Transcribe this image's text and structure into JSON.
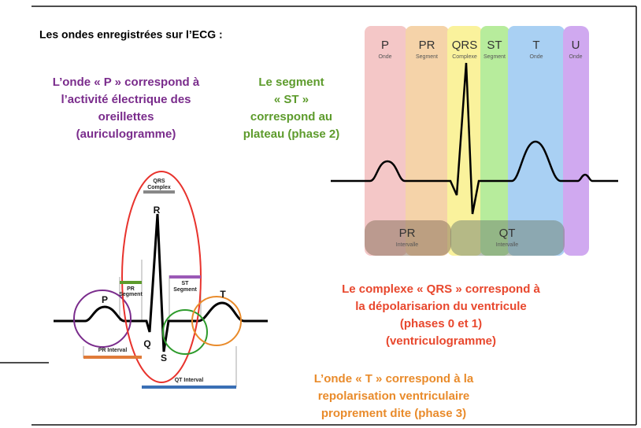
{
  "title": "Les ondes enregistrées sur l’ECG :",
  "notes": {
    "p": [
      "L’onde « P » correspond à",
      "l’activité électrique des",
      "oreillettes",
      "(auriculogramme)"
    ],
    "st": [
      "Le segment",
      "« ST »",
      "correspond au",
      "plateau (phase 2)"
    ],
    "qrs": [
      "Le complexe « QRS » correspond à",
      "la dépolarisarion du ventricule",
      "(phases 0 et 1)",
      "(ventriculogramme)"
    ],
    "t": [
      "L’onde « T » correspond à la",
      "repolarisation ventriculaire",
      "proprement dite (phase 3)"
    ]
  },
  "ecg_phases": [
    {
      "label": "P",
      "sub": "Onde"
    },
    {
      "label": "PR",
      "sub": "Segment"
    },
    {
      "label": "QRS",
      "sub": "Complexe"
    },
    {
      "label": "ST",
      "sub": "Segment"
    },
    {
      "label": "T",
      "sub": "Onde"
    },
    {
      "label": "U",
      "sub": "Onde"
    }
  ],
  "intervals": [
    {
      "label": "PR",
      "sub": "Intervalle"
    },
    {
      "label": "QT",
      "sub": "Intervalle"
    }
  ],
  "trace_labels": {
    "qrs_complex": [
      "QRS",
      "Complex"
    ],
    "r": "R",
    "q": "Q",
    "s": "S",
    "p": "P",
    "t": "T",
    "pr_segment": [
      "PR",
      "Segment"
    ],
    "st_segment": [
      "ST",
      "Segment"
    ],
    "pr_interval": "PR Interval",
    "qt_interval": "QT Interval"
  }
}
